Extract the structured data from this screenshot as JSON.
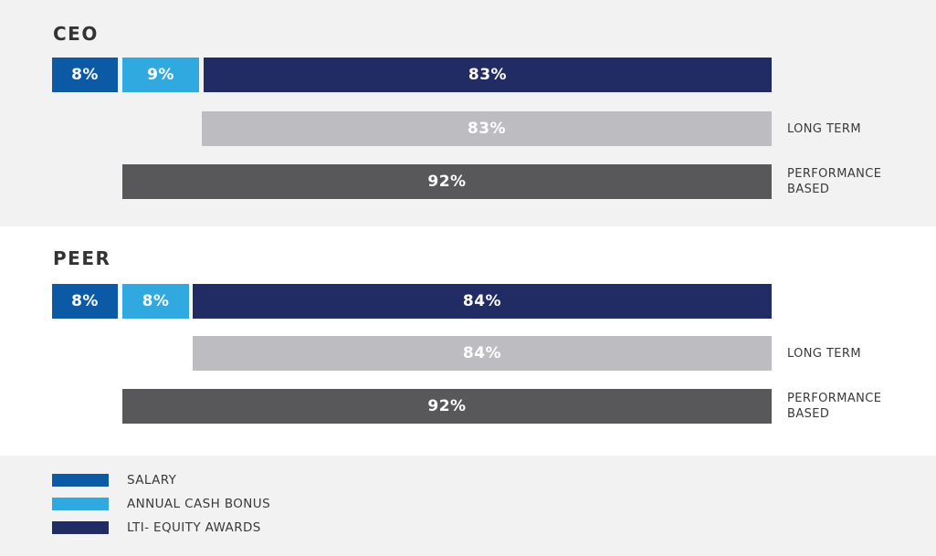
{
  "sections": [
    {
      "title": "CEO",
      "stacked": [
        {
          "series": "SALARY",
          "label": "8%"
        },
        {
          "series": "ANNUAL CASH BONUS",
          "label": "9%"
        },
        {
          "series": "LTI- EQUITY AWARDS",
          "label": "83%"
        }
      ],
      "long_term_bar": {
        "label": "83%"
      },
      "performance_bar": {
        "label": "92%"
      },
      "side_labels": {
        "long_term": "LONG TERM",
        "performance_line1": "PERFORMANCE",
        "performance_line2": "BASED"
      }
    },
    {
      "title": "PEER",
      "stacked": [
        {
          "series": "SALARY",
          "label": "8%"
        },
        {
          "series": "ANNUAL CASH BONUS",
          "label": "8%"
        },
        {
          "series": "LTI- EQUITY AWARDS",
          "label": "84%"
        }
      ],
      "long_term_bar": {
        "label": "84%"
      },
      "performance_bar": {
        "label": "92%"
      },
      "side_labels": {
        "long_term": "LONG TERM",
        "performance_line1": "PERFORMANCE",
        "performance_line2": "BASED"
      }
    }
  ],
  "legend": {
    "items": [
      {
        "label": "SALARY",
        "color": "#0c5aa6"
      },
      {
        "label": "ANNUAL CASH BONUS",
        "color": "#30a9e0"
      },
      {
        "label": "LTI- EQUITY AWARDS",
        "color": "#222c64"
      }
    ]
  },
  "colors": {
    "salary": "#0c5aa6",
    "annual_cash_bonus": "#30a9e0",
    "lti_equity_awards": "#222c64",
    "long_term_bar": "#bdbdc1",
    "performance_bar": "#58585a",
    "band_background": "#f2f2f2",
    "text": "#3a3a3a",
    "bar_label_text": "#ffffff"
  },
  "chart_data": {
    "type": "bar",
    "orientation": "horizontal-stacked",
    "unit": "percent",
    "groups": [
      {
        "label": "CEO",
        "salary": 8,
        "annual_cash_bonus": 9,
        "lti_equity_awards": 83,
        "long_term": 83,
        "performance_based": 92
      },
      {
        "label": "PEER",
        "salary": 8,
        "annual_cash_bonus": 8,
        "lti_equity_awards": 84,
        "long_term": 84,
        "performance_based": 92
      }
    ],
    "legend": [
      "SALARY",
      "ANNUAL CASH BONUS",
      "LTI- EQUITY AWARDS"
    ],
    "legend_position": "bottom-left",
    "side_labels": [
      "LONG TERM",
      "PERFORMANCE BASED"
    ],
    "grid": false,
    "axes_visible": false,
    "bars_right_aligned": true
  }
}
